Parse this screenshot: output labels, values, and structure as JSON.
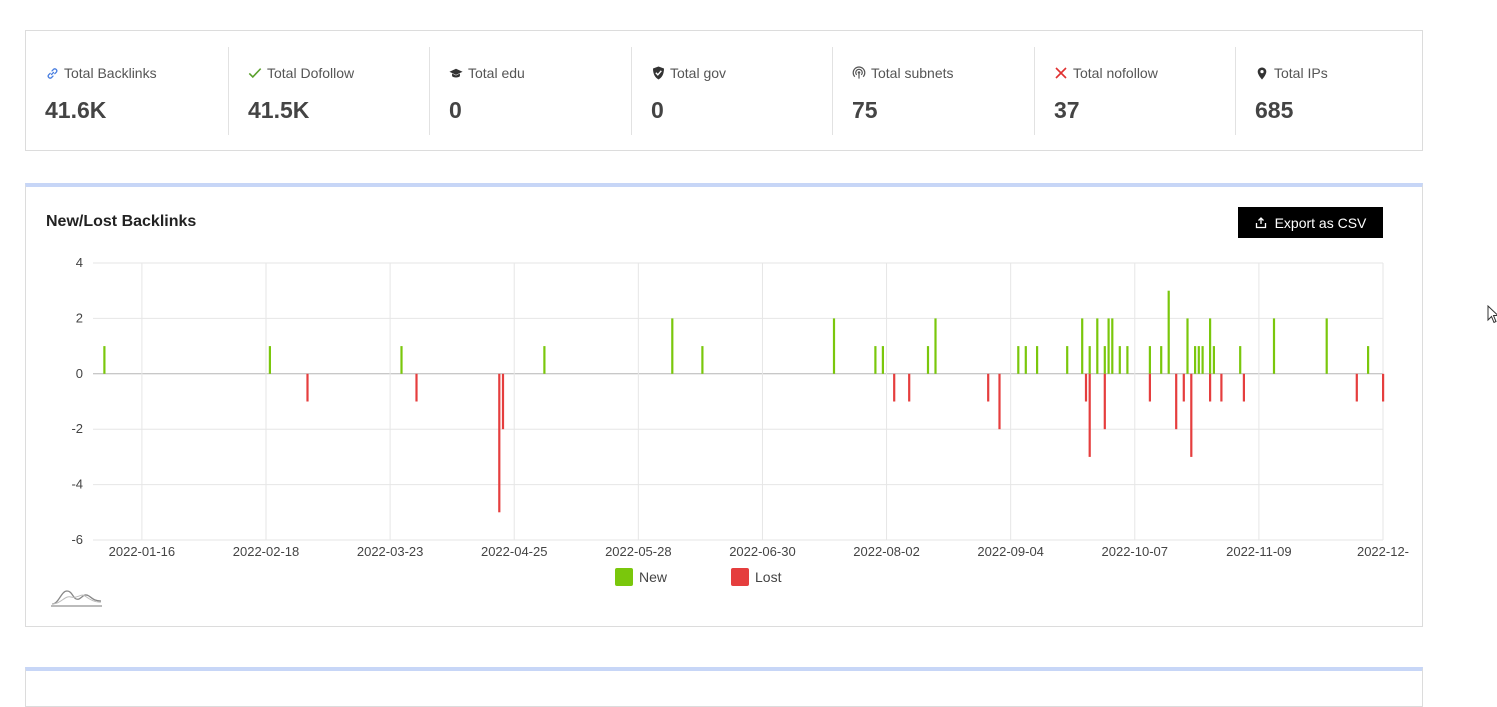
{
  "stats": [
    {
      "label": "Total Backlinks",
      "value": "41.6K",
      "icon": "link-icon",
      "icon_color": "#4a7fe0"
    },
    {
      "label": "Total Dofollow",
      "value": "41.5K",
      "icon": "check-icon",
      "icon_color": "#5aa02c"
    },
    {
      "label": "Total edu",
      "value": "0",
      "icon": "graduation-cap-icon",
      "icon_color": "#333333"
    },
    {
      "label": "Total gov",
      "value": "0",
      "icon": "shield-check-icon",
      "icon_color": "#333333"
    },
    {
      "label": "Total subnets",
      "value": "75",
      "icon": "broadcast-icon",
      "icon_color": "#555555"
    },
    {
      "label": "Total nofollow",
      "value": "37",
      "icon": "x-icon",
      "icon_color": "#e03030"
    },
    {
      "label": "Total IPs",
      "value": "685",
      "icon": "map-pin-icon",
      "icon_color": "#333333"
    }
  ],
  "panel": {
    "title": "New/Lost Backlinks",
    "export_label": "Export as CSV"
  },
  "colors": {
    "new": "#7ac70c",
    "lost": "#e53e3e",
    "panel_accent": "#c7d6f7"
  },
  "chart_data": {
    "type": "bar",
    "title": "New/Lost Backlinks",
    "x_tick_labels": [
      "2022-01-16",
      "2022-02-18",
      "2022-03-23",
      "2022-04-25",
      "2022-05-28",
      "2022-06-30",
      "2022-08-02",
      "2022-09-04",
      "2022-10-07",
      "2022-11-09",
      "2022-12-"
    ],
    "x_range": [
      "2022-01-03",
      "2022-12-12"
    ],
    "ylim": [
      -6,
      4
    ],
    "y_ticks": [
      4,
      2,
      0,
      -2,
      -4,
      -6
    ],
    "grid": true,
    "legend_position": "bottom",
    "series": [
      {
        "name": "New",
        "color": "#7ac70c",
        "points": [
          {
            "date": "2022-01-06",
            "value": 1
          },
          {
            "date": "2022-02-19",
            "value": 1
          },
          {
            "date": "2022-03-26",
            "value": 1
          },
          {
            "date": "2022-05-03",
            "value": 1
          },
          {
            "date": "2022-06-06",
            "value": 2
          },
          {
            "date": "2022-06-14",
            "value": 1
          },
          {
            "date": "2022-07-19",
            "value": 2
          },
          {
            "date": "2022-07-30",
            "value": 1
          },
          {
            "date": "2022-08-01",
            "value": 1
          },
          {
            "date": "2022-08-13",
            "value": 1
          },
          {
            "date": "2022-08-15",
            "value": 2
          },
          {
            "date": "2022-09-06",
            "value": 1
          },
          {
            "date": "2022-09-08",
            "value": 1
          },
          {
            "date": "2022-09-11",
            "value": 1
          },
          {
            "date": "2022-09-19",
            "value": 1
          },
          {
            "date": "2022-09-23",
            "value": 2
          },
          {
            "date": "2022-09-25",
            "value": 1
          },
          {
            "date": "2022-09-27",
            "value": 2
          },
          {
            "date": "2022-09-29",
            "value": 1
          },
          {
            "date": "2022-09-30",
            "value": 2
          },
          {
            "date": "2022-10-01",
            "value": 2
          },
          {
            "date": "2022-10-03",
            "value": 1
          },
          {
            "date": "2022-10-05",
            "value": 1
          },
          {
            "date": "2022-10-11",
            "value": 1
          },
          {
            "date": "2022-10-14",
            "value": 1
          },
          {
            "date": "2022-10-16",
            "value": 3
          },
          {
            "date": "2022-10-21",
            "value": 2
          },
          {
            "date": "2022-10-23",
            "value": 1
          },
          {
            "date": "2022-10-24",
            "value": 1
          },
          {
            "date": "2022-10-25",
            "value": 1
          },
          {
            "date": "2022-10-27",
            "value": 2
          },
          {
            "date": "2022-10-28",
            "value": 1
          },
          {
            "date": "2022-11-04",
            "value": 1
          },
          {
            "date": "2022-11-13",
            "value": 2
          },
          {
            "date": "2022-11-27",
            "value": 2
          },
          {
            "date": "2022-12-08",
            "value": 1
          }
        ]
      },
      {
        "name": "Lost",
        "color": "#e53e3e",
        "points": [
          {
            "date": "2022-03-01",
            "value": -1
          },
          {
            "date": "2022-03-30",
            "value": -1
          },
          {
            "date": "2022-04-21",
            "value": -5
          },
          {
            "date": "2022-04-22",
            "value": -2
          },
          {
            "date": "2022-08-04",
            "value": -1
          },
          {
            "date": "2022-08-08",
            "value": -1
          },
          {
            "date": "2022-08-29",
            "value": -1
          },
          {
            "date": "2022-09-01",
            "value": -2
          },
          {
            "date": "2022-09-24",
            "value": -1
          },
          {
            "date": "2022-09-25",
            "value": -3
          },
          {
            "date": "2022-09-29",
            "value": -2
          },
          {
            "date": "2022-10-11",
            "value": -1
          },
          {
            "date": "2022-10-18",
            "value": -2
          },
          {
            "date": "2022-10-20",
            "value": -1
          },
          {
            "date": "2022-10-22",
            "value": -3
          },
          {
            "date": "2022-10-27",
            "value": -1
          },
          {
            "date": "2022-10-30",
            "value": -1
          },
          {
            "date": "2022-11-05",
            "value": -1
          },
          {
            "date": "2022-12-05",
            "value": -1
          },
          {
            "date": "2022-12-12",
            "value": -1
          }
        ]
      }
    ]
  }
}
